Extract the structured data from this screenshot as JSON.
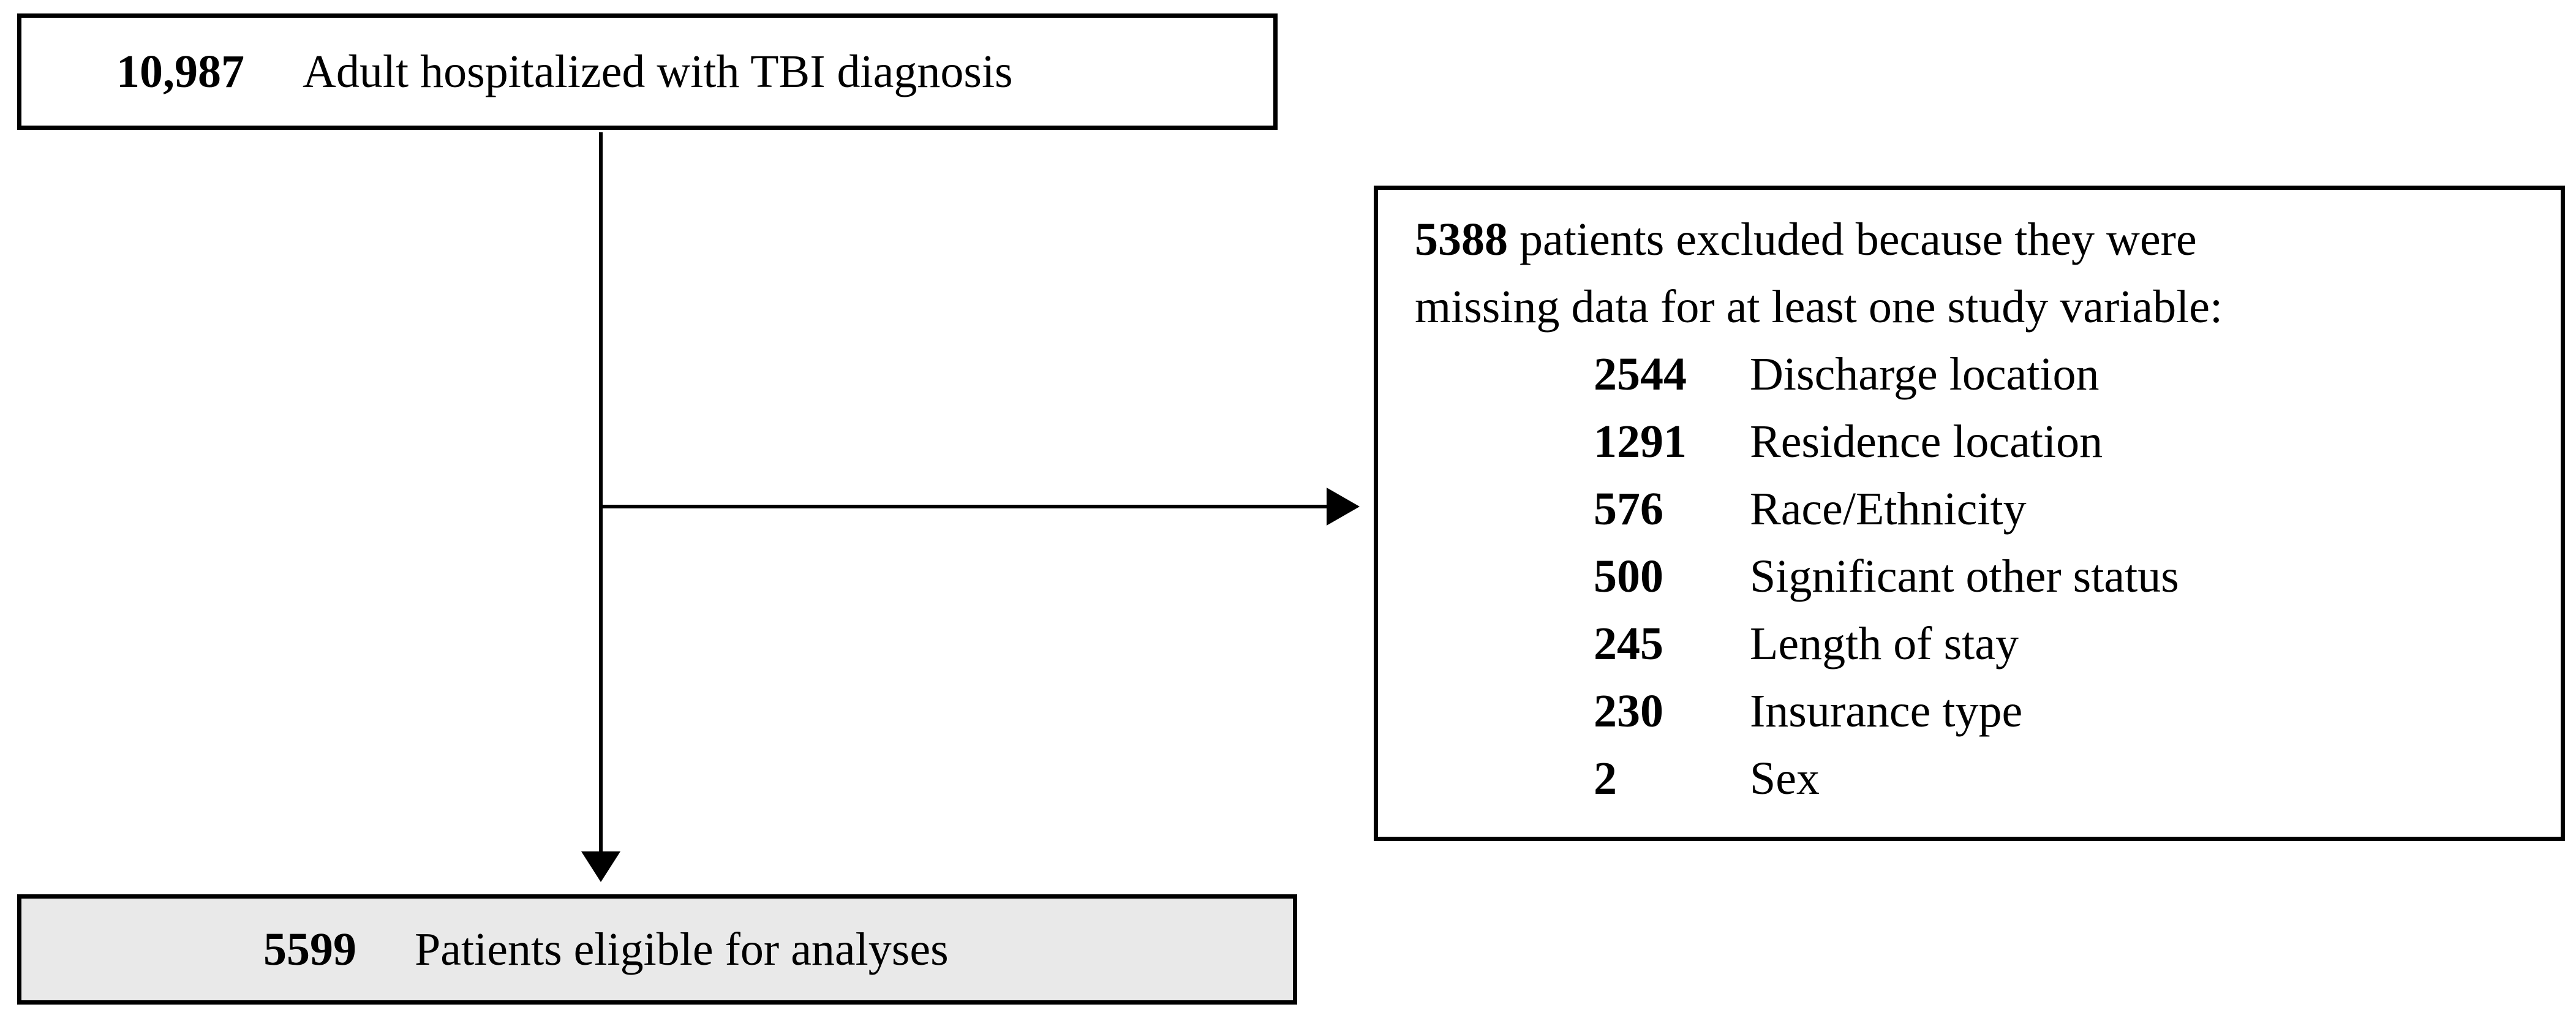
{
  "diagram": {
    "top_box": {
      "count": "10,987",
      "label": "Adult hospitalized with TBI diagnosis"
    },
    "exclusion_box": {
      "count": "5388",
      "reason_line1": "patients excluded because they were",
      "reason_line2": "missing data for at least one study variable:",
      "items": [
        {
          "count": "2544",
          "label": "Discharge location"
        },
        {
          "count": "1291",
          "label": "Residence location"
        },
        {
          "count": "576",
          "label": "Race/Ethnicity"
        },
        {
          "count": "500",
          "label": "Significant other status"
        },
        {
          "count": "245",
          "label": "Length of stay"
        },
        {
          "count": "230",
          "label": "Insurance type"
        },
        {
          "count": "2",
          "label": "Sex"
        }
      ]
    },
    "bottom_box": {
      "count": "5599",
      "label": "Patients eligible for analyses"
    },
    "colors": {
      "border": "#000000",
      "text": "#000000",
      "final_box_background": "#e9e9e9",
      "page_background": "#ffffff"
    }
  }
}
